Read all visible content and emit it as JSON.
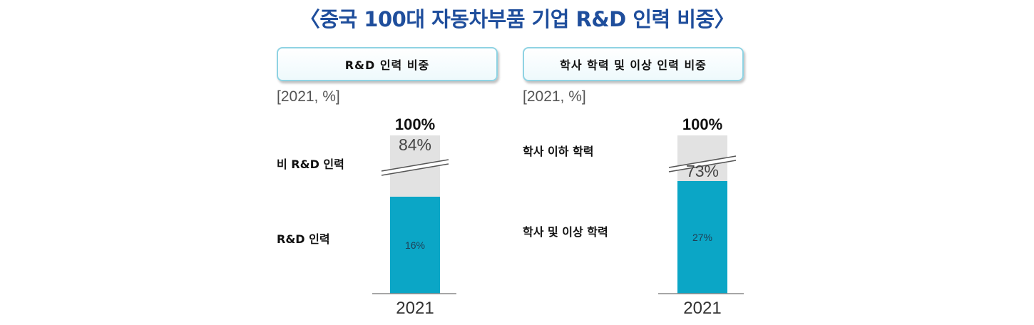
{
  "title": "〈중국 100대 자동차부품 기업 R&D 인력 비중〉",
  "colors": {
    "title": "#1f4e9c",
    "primary_bar": "#0ba6c6",
    "secondary_bar": "#e2e2e2"
  },
  "chart_data": [
    {
      "type": "bar",
      "stacked": true,
      "title": "R&D 인력 비중",
      "unit_note": "[2021, %]",
      "categories": [
        "2021"
      ],
      "total_label": "100%",
      "series": [
        {
          "name": "R&D 인력",
          "values": [
            16
          ],
          "label": "16%"
        },
        {
          "name": "비 R&D 인력",
          "values": [
            84
          ],
          "label": "84%"
        }
      ],
      "axis_break": true
    },
    {
      "type": "bar",
      "stacked": true,
      "title": "학사 학력 및 이상 인력 비중",
      "unit_note": "[2021, %]",
      "categories": [
        "2021"
      ],
      "total_label": "100%",
      "series": [
        {
          "name": "학사 및 이상 학력",
          "values": [
            27
          ],
          "label": "27%"
        },
        {
          "name": "학사 이하 학력",
          "values": [
            73
          ],
          "label": "73%"
        }
      ],
      "axis_break": true
    }
  ]
}
